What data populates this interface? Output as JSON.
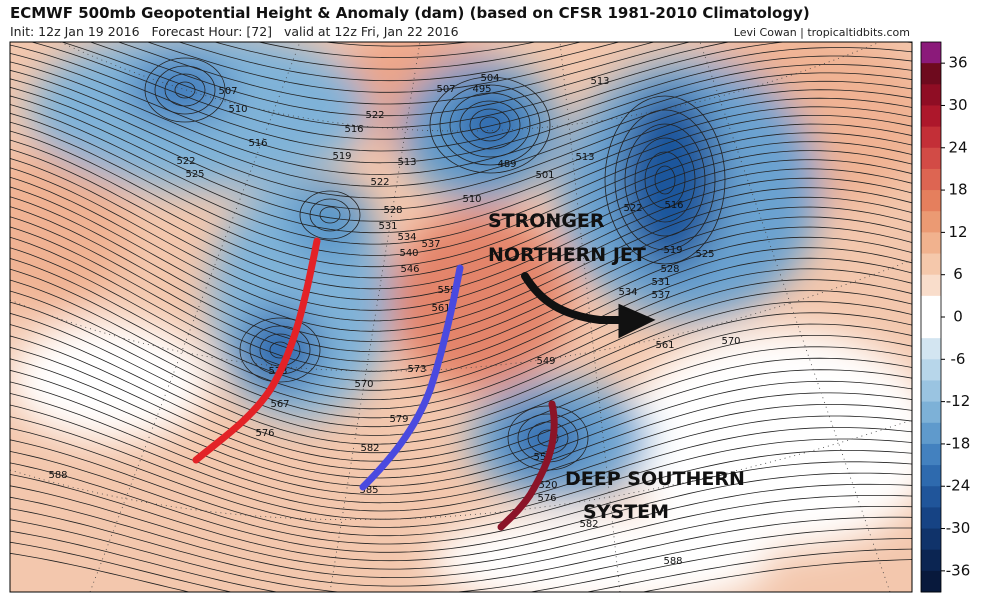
{
  "header": {
    "title": "ECMWF 500mb Geopotential Height & Anomaly (dam) (based on CFSR 1981-2010 Climatology)",
    "init": "Init: 12z Jan 19 2016   Forecast Hour: [72]   valid at 12z Fri, Jan 22 2016",
    "credit": "Levi Cowan | tropicaltidbits.com"
  },
  "colorbar": {
    "range": [
      -39,
      39
    ],
    "ticks": [
      36,
      30,
      24,
      18,
      12,
      6,
      0,
      -6,
      -12,
      -18,
      -24,
      -30,
      -36
    ],
    "colors": [
      "#8b1a7a",
      "#6e0a1e",
      "#8f0d24",
      "#ad172b",
      "#c32f37",
      "#d24b46",
      "#dd6552",
      "#e57f5d",
      "#eb9a73",
      "#f1b28e",
      "#f5c8ab",
      "#f9ddcb",
      "#ffffff",
      "#ffffff",
      "#d3e5f1",
      "#b7d6ea",
      "#9ac4e1",
      "#7db1d7",
      "#5f9acc",
      "#4381bf",
      "#2e6aae",
      "#20559a",
      "#164384",
      "#10336a",
      "#0b2552",
      "#08193c"
    ]
  },
  "annotations": [
    "STRONGER",
    "NORTHERN JET",
    "DEEP SOUTHERN",
    "SYSTEM"
  ],
  "contour_labels": [
    "507",
    "510",
    "516",
    "522",
    "525",
    "519",
    "513",
    "522",
    "528",
    "531",
    "534",
    "537",
    "540",
    "546",
    "555",
    "561",
    "522",
    "516",
    "504",
    "495",
    "507",
    "513",
    "489",
    "501",
    "513",
    "510",
    "516",
    "522",
    "519",
    "525",
    "528",
    "531",
    "534",
    "537",
    "561",
    "570",
    "549",
    "567",
    "576",
    "570",
    "573",
    "579",
    "582",
    "585",
    "588",
    "558",
    "520",
    "576",
    "582",
    "588",
    "573"
  ]
}
